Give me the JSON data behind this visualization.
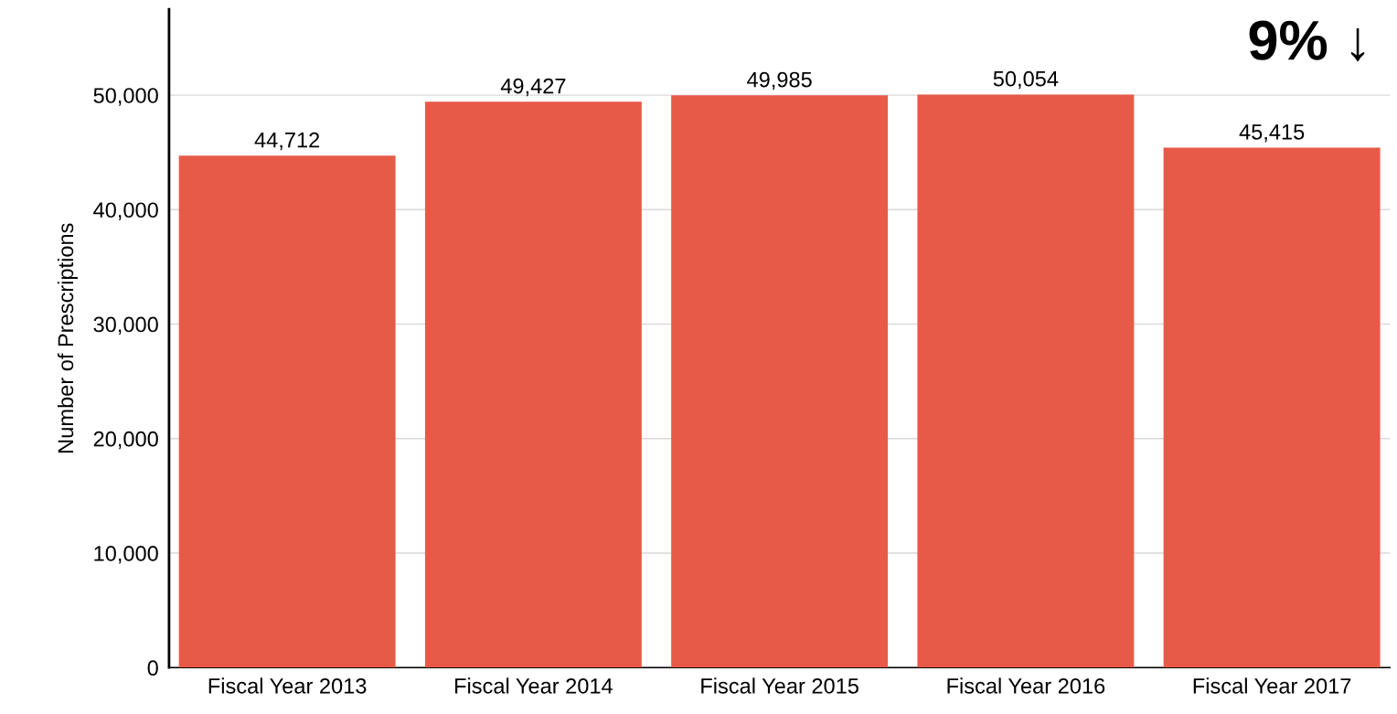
{
  "chart_data": {
    "type": "bar",
    "ylabel": "Number of Prescriptions",
    "categories": [
      "Fiscal Year 2013",
      "Fiscal Year 2014",
      "Fiscal Year 2015",
      "Fiscal Year 2016",
      "Fiscal Year 2017"
    ],
    "values": [
      44712,
      49427,
      49985,
      50054,
      45415
    ],
    "color": "#e85a48",
    "ylim": [
      0,
      57500
    ],
    "yticks": [
      0,
      {
        "value": 10000,
        "label": "10,000"
      },
      {
        "value": 20000,
        "label": "20,000"
      },
      {
        "value": 30000,
        "label": "30,000"
      },
      {
        "value": 40000,
        "label": "40,000"
      },
      {
        "value": 50000,
        "label": "50,000"
      }
    ],
    "value_labels": [
      "44,712",
      "49,427",
      "49,985",
      "50,054",
      "45,415"
    ],
    "grid": "y",
    "annotations": [
      "9% ↓"
    ]
  }
}
